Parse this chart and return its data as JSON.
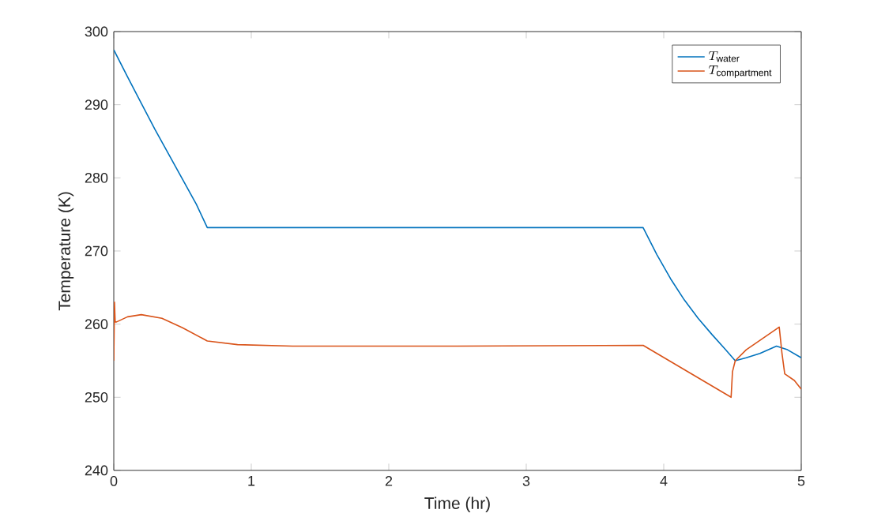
{
  "chart_data": {
    "type": "line",
    "xlabel": "Time (hr)",
    "ylabel": "Temperature (K)",
    "xlim": [
      0,
      5
    ],
    "ylim": [
      240,
      300
    ],
    "xticks": [
      0,
      1,
      2,
      3,
      4,
      5
    ],
    "yticks": [
      240,
      250,
      260,
      270,
      280,
      290,
      300
    ],
    "grid": false,
    "legend": "top right",
    "series": [
      {
        "name": "T_{\\mathrm{water}}",
        "color": "#0072bd",
        "x": [
          0,
          0.1,
          0.2,
          0.3,
          0.4,
          0.5,
          0.6,
          0.68,
          1.5,
          2.5,
          3.85,
          3.95,
          4.05,
          4.15,
          4.25,
          4.35,
          4.45,
          4.52,
          4.6,
          4.7,
          4.82,
          4.9,
          5
        ],
        "values": [
          297.5,
          293.8,
          290.2,
          286.6,
          283.2,
          279.8,
          276.4,
          273.2,
          273.2,
          273.2,
          273.2,
          269.5,
          266.2,
          263.3,
          260.8,
          258.6,
          256.5,
          255,
          255.4,
          256,
          257,
          256.5,
          255.4
        ]
      },
      {
        "name": "T_{\\mathrm{compartment}}",
        "color": "#d95319",
        "x": [
          0,
          0.005,
          0.01,
          0.02,
          0.1,
          0.2,
          0.35,
          0.5,
          0.68,
          0.9,
          1.3,
          2.5,
          3.85,
          4.49,
          4.5,
          4.52,
          4.6,
          4.84,
          4.86,
          4.88,
          4.95,
          5
        ],
        "values": [
          255,
          263,
          260.3,
          260.3,
          261,
          261.3,
          260.8,
          259.5,
          257.7,
          257.2,
          257,
          257,
          257.1,
          250,
          253.5,
          255,
          256.5,
          259.6,
          256,
          253.2,
          252.3,
          251.1
        ]
      }
    ]
  }
}
